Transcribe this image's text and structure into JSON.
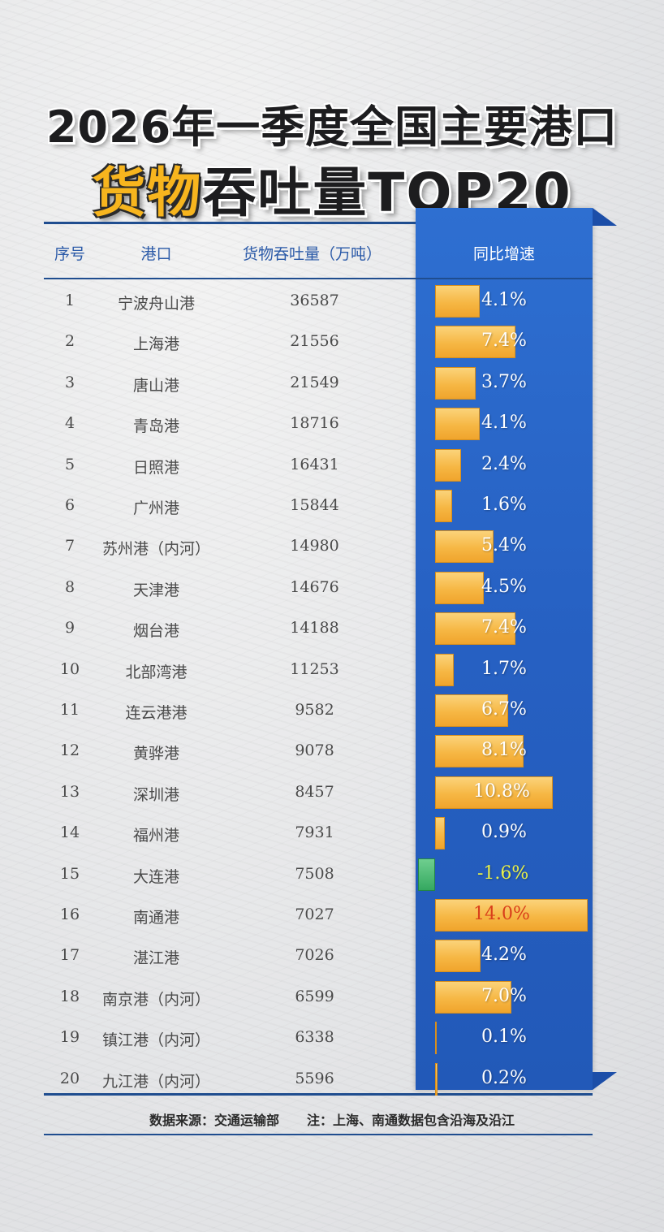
{
  "title_line1": "2026年一季度全国主要港口",
  "title_line2_highlight": "货物",
  "title_line2_rest": "吞吐量TOP20",
  "columns": {
    "rank": "序号",
    "port": "港口",
    "throughput": "货物吞吐量（万吨）",
    "growth": "同比增速"
  },
  "chart_data": {
    "type": "table",
    "title": "2026年一季度全国主要港口货物吞吐量TOP20",
    "rows": [
      {
        "rank": "1",
        "port": "宁波舟山港",
        "throughput": "36587",
        "growth": 4.1,
        "growth_label": "4.1%"
      },
      {
        "rank": "2",
        "port": "上海港",
        "throughput": "21556",
        "growth": 7.4,
        "growth_label": "7.4%"
      },
      {
        "rank": "3",
        "port": "唐山港",
        "throughput": "21549",
        "growth": 3.7,
        "growth_label": "3.7%"
      },
      {
        "rank": "4",
        "port": "青岛港",
        "throughput": "18716",
        "growth": 4.1,
        "growth_label": "4.1%"
      },
      {
        "rank": "5",
        "port": "日照港",
        "throughput": "16431",
        "growth": 2.4,
        "growth_label": "2.4%"
      },
      {
        "rank": "6",
        "port": "广州港",
        "throughput": "15844",
        "growth": 1.6,
        "growth_label": "1.6%"
      },
      {
        "rank": "7",
        "port": "苏州港（内河）",
        "throughput": "14980",
        "growth": 5.4,
        "growth_label": "5.4%"
      },
      {
        "rank": "8",
        "port": "天津港",
        "throughput": "14676",
        "growth": 4.5,
        "growth_label": "4.5%"
      },
      {
        "rank": "9",
        "port": "烟台港",
        "throughput": "14188",
        "growth": 7.4,
        "growth_label": "7.4%"
      },
      {
        "rank": "10",
        "port": "北部湾港",
        "throughput": "11253",
        "growth": 1.7,
        "growth_label": "1.7%"
      },
      {
        "rank": "11",
        "port": "连云港港",
        "throughput": "9582",
        "growth": 6.7,
        "growth_label": "6.7%"
      },
      {
        "rank": "12",
        "port": "黄骅港",
        "throughput": "9078",
        "growth": 8.1,
        "growth_label": "8.1%"
      },
      {
        "rank": "13",
        "port": "深圳港",
        "throughput": "8457",
        "growth": 10.8,
        "growth_label": "10.8%"
      },
      {
        "rank": "14",
        "port": "福州港",
        "throughput": "7931",
        "growth": 0.9,
        "growth_label": "0.9%"
      },
      {
        "rank": "15",
        "port": "大连港",
        "throughput": "7508",
        "growth": -1.6,
        "growth_label": "-1.6%"
      },
      {
        "rank": "16",
        "port": "南通港",
        "throughput": "7027",
        "growth": 14.0,
        "growth_label": "14.0%"
      },
      {
        "rank": "17",
        "port": "湛江港",
        "throughput": "7026",
        "growth": 4.2,
        "growth_label": "4.2%"
      },
      {
        "rank": "18",
        "port": "南京港（内河）",
        "throughput": "6599",
        "growth": 7.0,
        "growth_label": "7.0%"
      },
      {
        "rank": "19",
        "port": "镇江港（内河）",
        "throughput": "6338",
        "growth": 0.1,
        "growth_label": "0.1%"
      },
      {
        "rank": "20",
        "port": "九江港（内河）",
        "throughput": "5596",
        "growth": 0.2,
        "growth_label": "0.2%"
      }
    ]
  },
  "footer": {
    "source": "数据来源：交通运输部",
    "note": "注：上海、南通数据包含沿海及沿江"
  },
  "colors": {
    "accent_blue": "#2660c2",
    "bar_orange": "#f6b744",
    "bar_negative": "#35a860",
    "title_gold": "#f7b51e"
  }
}
